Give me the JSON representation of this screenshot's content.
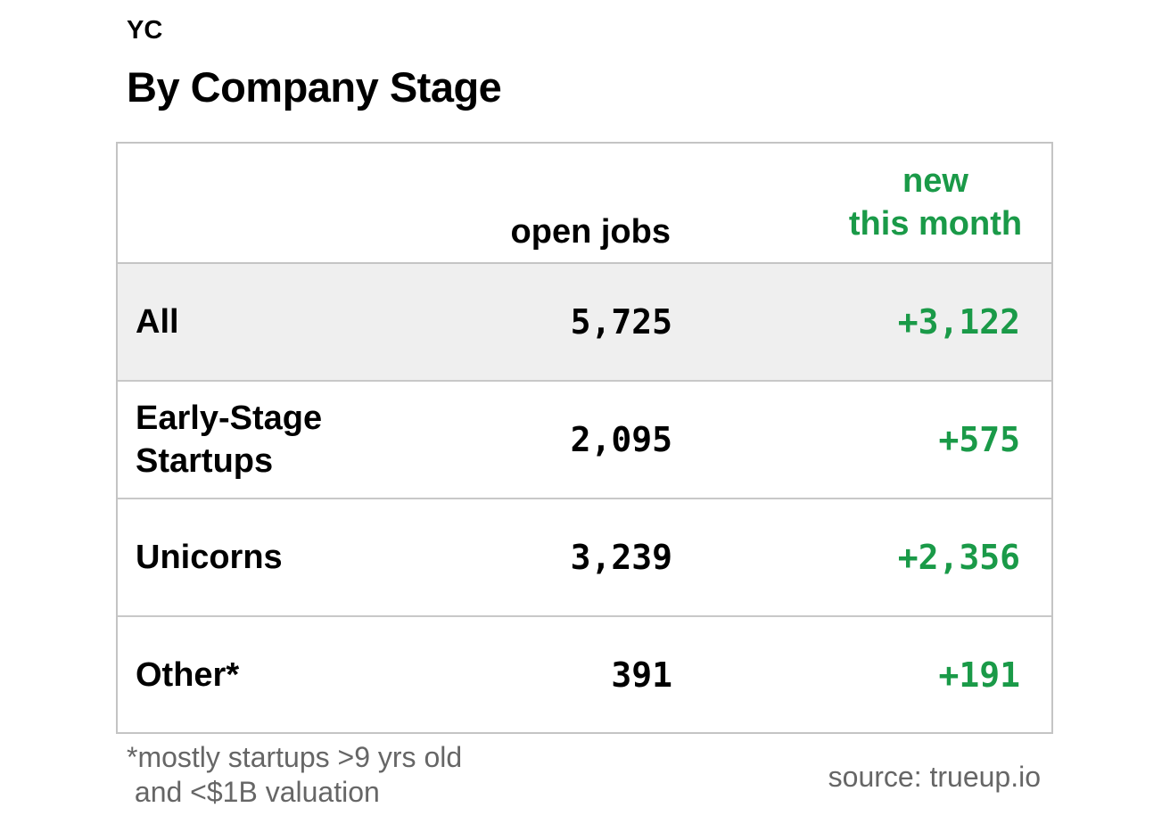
{
  "supertitle": "YC",
  "title": "By Company Stage",
  "colors": {
    "text": "#000000",
    "accent_green": "#1a9a48",
    "highlight_row": "#efefef",
    "border": "#c4c4c4",
    "muted_text": "#666666"
  },
  "chart_data": {
    "type": "table",
    "columns": [
      "",
      "open jobs",
      "new this month"
    ],
    "column_header_lines": {
      "new_this_month": [
        "new",
        "this month"
      ]
    },
    "rows": [
      {
        "label": "All",
        "label_lines": [
          "All"
        ],
        "open_jobs": "5,725",
        "new_this_month": "+3,122",
        "highlighted": true
      },
      {
        "label": "Early-Stage Startups",
        "label_lines": [
          "Early-Stage",
          "Startups"
        ],
        "open_jobs": "2,095",
        "new_this_month": "+575",
        "highlighted": false
      },
      {
        "label": "Unicorns",
        "label_lines": [
          "Unicorns"
        ],
        "open_jobs": "3,239",
        "new_this_month": "+2,356",
        "highlighted": false
      },
      {
        "label": "Other*",
        "label_lines": [
          "Other*"
        ],
        "open_jobs": "391",
        "new_this_month": "+191",
        "highlighted": false
      }
    ]
  },
  "footnote_lines": [
    "*mostly startups >9 yrs old",
    " and <$1B valuation"
  ],
  "source": "source: trueup.io"
}
